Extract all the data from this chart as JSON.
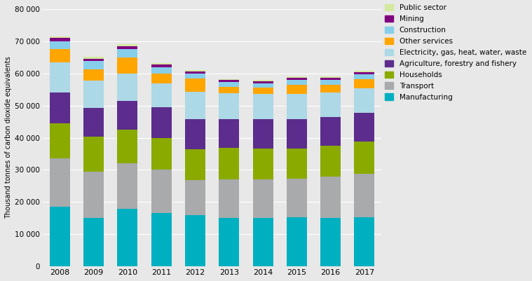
{
  "years": [
    2008,
    2009,
    2010,
    2011,
    2012,
    2013,
    2014,
    2015,
    2016,
    2017
  ],
  "series": {
    "Manufacturing": [
      18500,
      15000,
      17800,
      16500,
      15800,
      15000,
      15000,
      15200,
      15000,
      15300
    ],
    "Transport": [
      15000,
      14500,
      14200,
      13500,
      11000,
      12000,
      12000,
      12000,
      13000,
      13500
    ],
    "Households": [
      11000,
      10800,
      10500,
      10000,
      9500,
      9800,
      9700,
      9500,
      9500,
      10000
    ],
    "Agriculture, forestry and fishery": [
      9500,
      9000,
      9000,
      9500,
      9500,
      9000,
      9000,
      9000,
      9000,
      9000
    ],
    "Electricity, gas, heat, water, waste": [
      9500,
      8500,
      8500,
      7500,
      8500,
      8000,
      8000,
      8000,
      7500,
      7500
    ],
    "Other services": [
      4000,
      3500,
      5000,
      3000,
      4200,
      2000,
      1800,
      2800,
      2500,
      3000
    ],
    "Construction": [
      2500,
      2500,
      2500,
      2000,
      1500,
      1500,
      1500,
      1500,
      1500,
      1500
    ],
    "Mining": [
      1000,
      800,
      1000,
      800,
      600,
      600,
      600,
      600,
      600,
      600
    ],
    "Public sector": [
      500,
      500,
      600,
      500,
      400,
      400,
      400,
      400,
      400,
      400
    ]
  },
  "colors": {
    "Manufacturing": "#00B0C0",
    "Transport": "#A8AAAC",
    "Households": "#8AAA00",
    "Agriculture, forestry and fishery": "#5C2D8C",
    "Electricity, gas, heat, water, waste": "#ADD8E6",
    "Other services": "#FFA500",
    "Construction": "#87CEEB",
    "Mining": "#800080",
    "Public sector": "#D4E8A0"
  },
  "ylabel": "Thousand tonnes of carbon dioxide equivalents",
  "ylim": [
    0,
    80000
  ],
  "yticks": [
    0,
    10000,
    20000,
    30000,
    40000,
    50000,
    60000,
    70000,
    80000
  ],
  "ytick_labels": [
    "0",
    "10 000",
    "20 000",
    "30 000",
    "40 000",
    "50 000",
    "60 000",
    "70 000",
    "80 000"
  ],
  "background_color": "#E8E8E8",
  "plot_background_color": "#E8E8E8",
  "grid_color": "#FFFFFF",
  "figure_width": 7.59,
  "figure_height": 4.01,
  "legend_order": [
    "Public sector",
    "Mining",
    "Construction",
    "Other services",
    "Electricity, gas, heat, water, waste",
    "Agriculture, forestry and fishery",
    "Households",
    "Transport",
    "Manufacturing"
  ],
  "stack_order": [
    "Manufacturing",
    "Transport",
    "Households",
    "Agriculture, forestry and fishery",
    "Electricity, gas, heat, water, waste",
    "Other services",
    "Construction",
    "Mining",
    "Public sector"
  ]
}
